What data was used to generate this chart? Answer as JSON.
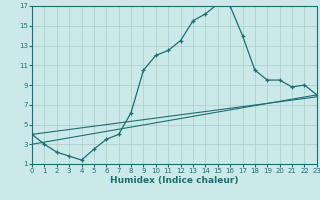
{
  "xlabel": "Humidex (Indice chaleur)",
  "bg_color": "#cce9e9",
  "grid_color": "#aacccc",
  "line_color": "#1a7070",
  "xlim": [
    0,
    23
  ],
  "ylim": [
    1,
    17
  ],
  "xticks": [
    0,
    1,
    2,
    3,
    4,
    5,
    6,
    7,
    8,
    9,
    10,
    11,
    12,
    13,
    14,
    15,
    16,
    17,
    18,
    19,
    20,
    21,
    22,
    23
  ],
  "yticks": [
    1,
    3,
    5,
    7,
    9,
    11,
    13,
    15,
    17
  ],
  "main_x": [
    0,
    1,
    2,
    3,
    4,
    5,
    6,
    7,
    8,
    9,
    10,
    11,
    12,
    13,
    14,
    15,
    16,
    17,
    18,
    19,
    20,
    21,
    22,
    23
  ],
  "main_y": [
    4,
    3,
    2.2,
    1.8,
    1.4,
    2.5,
    3.5,
    4.0,
    6.2,
    10.5,
    12.0,
    12.5,
    13.5,
    15.5,
    16.2,
    17.2,
    17.0,
    14.0,
    10.5,
    9.5,
    9.5,
    8.8,
    9.0,
    8.0
  ],
  "trend1_x": [
    0,
    23
  ],
  "trend1_y": [
    3.0,
    8.0
  ],
  "trend2_x": [
    0,
    23
  ],
  "trend2_y": [
    4.0,
    7.8
  ]
}
